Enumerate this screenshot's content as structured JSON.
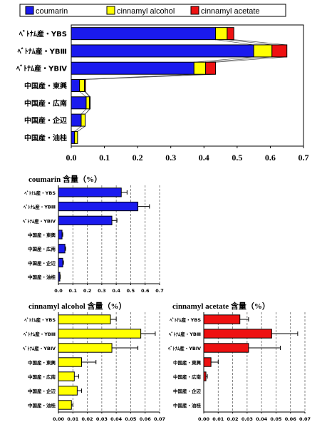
{
  "colors": {
    "coumarin": "#1a1aee",
    "cinnamyl_alcohol": "#ffff00",
    "cinnamyl_acetate": "#ee1111",
    "axis": "#000000",
    "grid": "#666666",
    "outline": "#000000"
  },
  "chart_data": [
    {
      "type": "bar",
      "stacked": true,
      "orientation": "horizontal",
      "legend": [
        "coumarin",
        "cinnamyl alcohol",
        "cinnamyl acetate"
      ],
      "legend_position": "top",
      "categories": [
        "ﾍﾞﾄﾅﾑ産・YBS",
        "ﾍﾞﾄﾅﾑ産・YBⅢ",
        "ﾍﾞﾄﾅﾑ産・YBⅣ",
        "中国産・東興",
        "中国産・広南",
        "中国産・企辺",
        "中国産・油桂"
      ],
      "series": [
        {
          "name": "coumarin",
          "values": [
            0.435,
            0.55,
            0.37,
            0.025,
            0.045,
            0.03,
            0.01
          ]
        },
        {
          "name": "cinnamyl alcohol",
          "values": [
            0.035,
            0.055,
            0.035,
            0.015,
            0.01,
            0.012,
            0.009
          ]
        },
        {
          "name": "cinnamyl acetate",
          "values": [
            0.02,
            0.045,
            0.03,
            0.003,
            0.002,
            0.0,
            0.0
          ]
        }
      ],
      "xlim": [
        0,
        0.7
      ],
      "xticks": [
        "0.0",
        "0.1",
        "0.2",
        "0.3",
        "0.4",
        "0.5",
        "0.6",
        "0.7"
      ],
      "grid": false
    },
    {
      "type": "bar",
      "orientation": "horizontal",
      "title": "coumarin  含量（%）",
      "categories": [
        "ﾍﾞﾄﾅﾑ産・YBS",
        "ﾍﾞﾄﾅﾑ産・YBⅢ",
        "ﾍﾞﾄﾅﾑ産・YBⅣ",
        "中国産・東興",
        "中国産・広南",
        "中国産・企辺",
        "中国産・油桂"
      ],
      "values": [
        0.435,
        0.55,
        0.37,
        0.025,
        0.045,
        0.03,
        0.01
      ],
      "errors": [
        0.04,
        0.08,
        0.035,
        0.005,
        0.005,
        0.005,
        0.003
      ],
      "xlim": [
        0,
        0.7
      ],
      "xticks": [
        "0.0",
        "0.1",
        "0.2",
        "0.3",
        "0.4",
        "0.5",
        "0.6",
        "0.7"
      ],
      "grid": "vertical dashed"
    },
    {
      "type": "bar",
      "orientation": "horizontal",
      "title": "cinnamyl alcohol  含量（%）",
      "categories": [
        "ﾍﾞﾄﾅﾑ産・YBS",
        "ﾍﾞﾄﾅﾑ産・YBⅢ",
        "ﾍﾞﾄﾅﾑ産・YBⅣ",
        "中国産・東興",
        "中国産・広南",
        "中国産・企辺",
        "中国産・油桂"
      ],
      "values": [
        0.036,
        0.057,
        0.037,
        0.016,
        0.011,
        0.013,
        0.009
      ],
      "errors": [
        0.004,
        0.01,
        0.018,
        0.01,
        0.003,
        0.003,
        0.001
      ],
      "xlim": [
        0,
        0.07
      ],
      "xticks": [
        "0.00",
        "0.01",
        "0.02",
        "0.03",
        "0.04",
        "0.05",
        "0.06",
        "0.07"
      ],
      "grid": "vertical dashed"
    },
    {
      "type": "bar",
      "orientation": "horizontal",
      "title": "cinnamyl acetate  含量（%）",
      "categories": [
        "ﾍﾞﾄﾅﾑ産・YBS",
        "ﾍﾞﾄﾅﾑ産・YBⅢ",
        "ﾍﾞﾄﾅﾑ産・YBⅣ",
        "中国産・東興",
        "中国産・広南",
        "中国産・企辺",
        "中国産・油桂"
      ],
      "values": [
        0.025,
        0.047,
        0.031,
        0.005,
        0.0015,
        0.0,
        0.0
      ],
      "errors": [
        0.006,
        0.018,
        0.022,
        0.005,
        0.001,
        0.0,
        0.0
      ],
      "xlim": [
        0,
        0.07
      ],
      "xticks": [
        "0.00",
        "0.01",
        "0.02",
        "0.03",
        "0.04",
        "0.05",
        "0.06",
        "0.07"
      ],
      "grid": "vertical dashed"
    }
  ]
}
